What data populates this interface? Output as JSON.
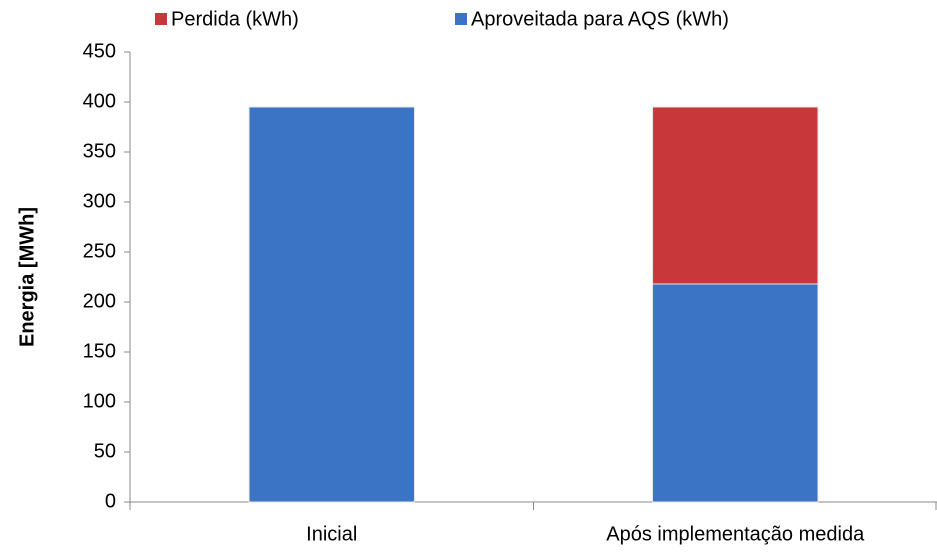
{
  "chart_data": {
    "type": "bar",
    "stacked": true,
    "y_label": "Energia [MWh]",
    "categories": [
      "Inicial",
      "Após implementação medida"
    ],
    "series": [
      {
        "name": "Perdida (kWh)",
        "color": "#c8383a",
        "values": [
          0,
          177
        ]
      },
      {
        "name": "Aproveitada para AQS (kWh)",
        "color": "#3b74c4",
        "values": [
          395,
          218
        ]
      }
    ],
    "ylim": [
      0,
      450
    ],
    "yticks": [
      0,
      50,
      100,
      150,
      200,
      250,
      300,
      350,
      400,
      450
    ],
    "grid": false,
    "legend": "top"
  }
}
